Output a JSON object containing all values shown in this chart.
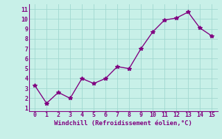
{
  "x": [
    0,
    1,
    2,
    3,
    4,
    5,
    6,
    7,
    8,
    9,
    10,
    11,
    12,
    13,
    14,
    15
  ],
  "y": [
    3.3,
    1.5,
    2.6,
    2.0,
    4.0,
    3.5,
    4.0,
    5.2,
    5.0,
    7.0,
    8.7,
    9.9,
    10.1,
    10.7,
    9.1,
    8.3
  ],
  "line_color": "#800080",
  "marker": "*",
  "marker_color": "#800080",
  "bg_color": "#c8f0e8",
  "grid_color": "#a0d8d0",
  "xlabel": "Windchill (Refroidissement éolien,°C)",
  "xlabel_color": "#800080",
  "tick_color": "#800080",
  "xlim": [
    -0.5,
    15.5
  ],
  "ylim": [
    0.7,
    11.5
  ],
  "yticks": [
    1,
    2,
    3,
    4,
    5,
    6,
    7,
    8,
    9,
    10,
    11
  ],
  "xticks": [
    0,
    1,
    2,
    3,
    4,
    5,
    6,
    7,
    8,
    9,
    10,
    11,
    12,
    13,
    14,
    15
  ],
  "linewidth": 1.0,
  "markersize": 4
}
